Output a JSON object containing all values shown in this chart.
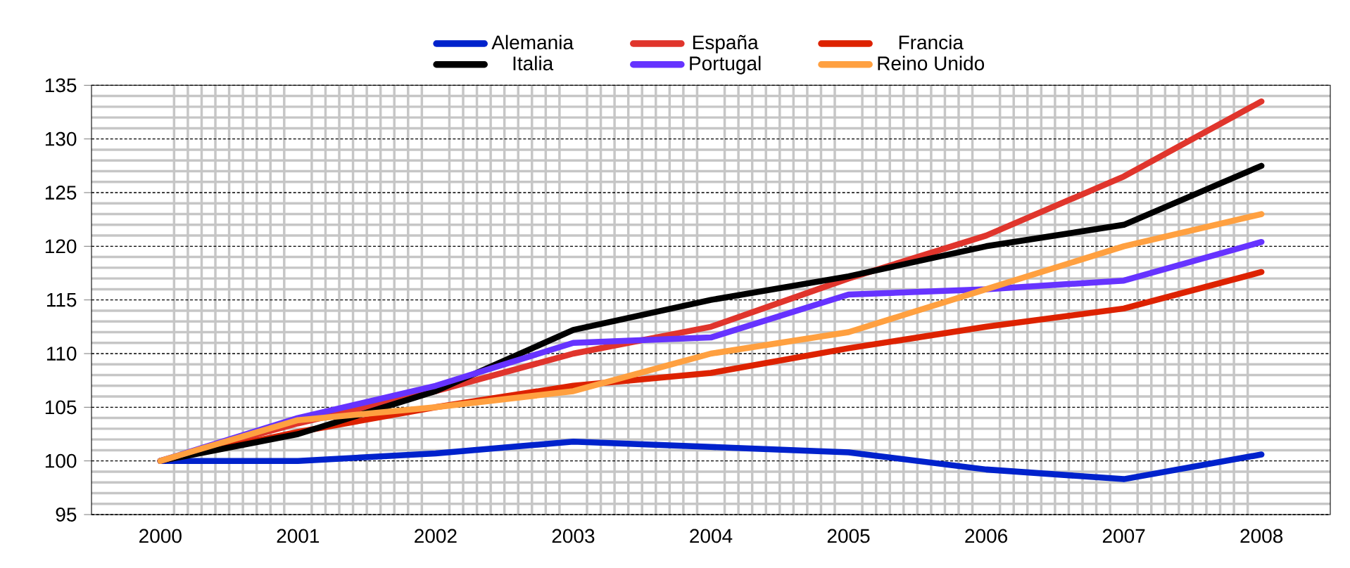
{
  "chart_data": {
    "type": "line",
    "categories": [
      "2000",
      "2001",
      "2002",
      "2003",
      "2004",
      "2005",
      "2006",
      "2007",
      "2008"
    ],
    "ylim": [
      95,
      135
    ],
    "yticks": [
      95,
      100,
      105,
      110,
      115,
      120,
      125,
      130,
      135
    ],
    "grid": true,
    "legend": "top",
    "line_style": "solid",
    "marker": "none",
    "series": [
      {
        "name": "Alemania",
        "color": "#0022cc",
        "values": [
          100,
          100,
          100.7,
          101.8,
          101.3,
          100.8,
          99.2,
          98.3,
          100.6
        ]
      },
      {
        "name": "España",
        "color": "#e0352c",
        "values": [
          100,
          103.5,
          106.5,
          110,
          112.5,
          117,
          121,
          126.5,
          133.5
        ]
      },
      {
        "name": "Francia",
        "color": "#dd2200",
        "values": [
          100,
          102.7,
          105,
          107,
          108.2,
          110.5,
          112.5,
          114.2,
          117.6
        ]
      },
      {
        "name": "Italia",
        "color": "#000000",
        "values": [
          100,
          102.5,
          106.5,
          112.2,
          115,
          117.2,
          120,
          122,
          127.5
        ]
      },
      {
        "name": "Portugal",
        "color": "#6633ff",
        "values": [
          100,
          104,
          107,
          111,
          111.5,
          115.5,
          116,
          116.8,
          120.4
        ]
      },
      {
        "name": "Reino Unido",
        "color": "#ffa040",
        "values": [
          100,
          103.8,
          105,
          106.5,
          110,
          112,
          116,
          120,
          123
        ]
      }
    ]
  }
}
